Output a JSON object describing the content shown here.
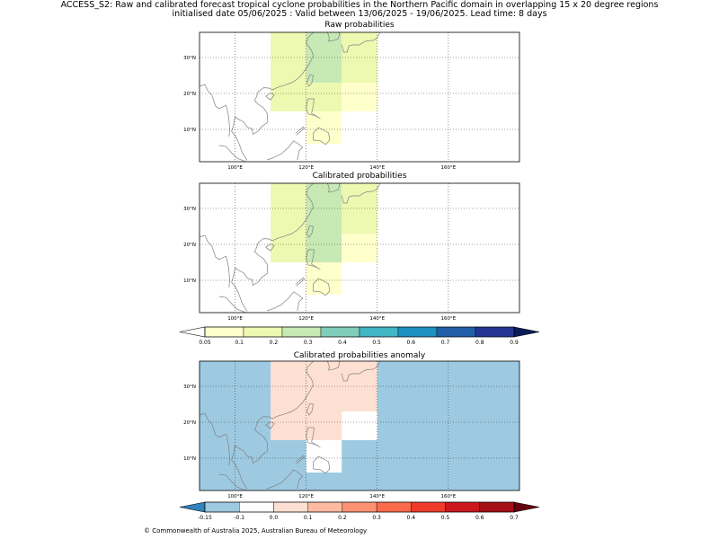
{
  "figure": {
    "title_line1": "ACCESS_S2: Raw and calibrated forecast tropical cyclone probabilities in the Northern Pacific domain in overlapping 15 x 20 degree regions",
    "title_line2": "initialised date 05/06/2025 :  Valid between 13/06/2025 - 19/06/2025. Lead time: 8 days",
    "copyright": "© Commonwealth of Australia 2025, Australian Bureau of Meteorology"
  },
  "colors": {
    "coast": "#808080",
    "anomaly_background": "#3182bd",
    "prob_colormap": [
      "#ffffcc",
      "#edf8b1",
      "#c7e9b4",
      "#7fcdbb",
      "#41b6c4",
      "#1d91c0",
      "#225ea8",
      "#253494",
      "#081d58"
    ],
    "anom_colormap": [
      "#3182bd",
      "#9ecae1",
      "#ffffff",
      "#fee0d2",
      "#fcbba1",
      "#fc9272",
      "#fb6a4a",
      "#ef3b2c",
      "#cb181d",
      "#a50f15",
      "#67000d"
    ]
  },
  "chart_data": [
    {
      "type": "heatmap",
      "title": "Raw probabilities",
      "xlim": [
        90,
        180
      ],
      "ylim": [
        1,
        37
      ],
      "xticks": [
        "100°E",
        "120°E",
        "140°E",
        "160°E"
      ],
      "xtick_values": [
        100,
        120,
        140,
        160
      ],
      "yticks": [
        "10°N",
        "20°N",
        "30°N"
      ],
      "ytick_values": [
        10,
        20,
        30
      ],
      "grid": true,
      "cells": [
        {
          "lon": [
            110,
            120
          ],
          "lat": [
            15,
            37
          ],
          "value": 0.1
        },
        {
          "lon": [
            120,
            130
          ],
          "lat": [
            23,
            37
          ],
          "value": 0.2
        },
        {
          "lon": [
            120,
            130
          ],
          "lat": [
            15,
            23
          ],
          "value": 0.1
        },
        {
          "lon": [
            130,
            140
          ],
          "lat": [
            23,
            37
          ],
          "value": 0.1
        },
        {
          "lon": [
            130,
            140
          ],
          "lat": [
            15,
            23
          ],
          "value": 0.05
        },
        {
          "lon": [
            120,
            130
          ],
          "lat": [
            6,
            15
          ],
          "value": 0.05
        }
      ]
    },
    {
      "type": "heatmap",
      "title": "Calibrated probabilities",
      "xlim": [
        90,
        180
      ],
      "ylim": [
        1,
        37
      ],
      "xticks": [
        "100°E",
        "120°E",
        "140°E",
        "160°E"
      ],
      "xtick_values": [
        100,
        120,
        140,
        160
      ],
      "yticks": [
        "10°N",
        "20°N",
        "30°N"
      ],
      "ytick_values": [
        10,
        20,
        30
      ],
      "grid": true,
      "cells": [
        {
          "lon": [
            110,
            120
          ],
          "lat": [
            15,
            37
          ],
          "value": 0.1
        },
        {
          "lon": [
            120,
            130
          ],
          "lat": [
            15,
            37
          ],
          "value": 0.2
        },
        {
          "lon": [
            130,
            140
          ],
          "lat": [
            23,
            37
          ],
          "value": 0.1
        },
        {
          "lon": [
            130,
            140
          ],
          "lat": [
            15,
            23
          ],
          "value": 0.05
        },
        {
          "lon": [
            120,
            130
          ],
          "lat": [
            6,
            15
          ],
          "value": 0.05
        }
      ],
      "colorbar": {
        "ticks": [
          "0.05",
          "0.1",
          "0.2",
          "0.3",
          "0.4",
          "0.5",
          "0.6",
          "0.7",
          "0.8",
          "0.9"
        ],
        "extend": "both"
      }
    },
    {
      "type": "heatmap",
      "title": "Calibrated probabilities anomaly",
      "xlim": [
        90,
        180
      ],
      "ylim": [
        1,
        37
      ],
      "xticks": [
        "100°E",
        "120°E",
        "140°E",
        "160°E"
      ],
      "xtick_values": [
        100,
        120,
        140,
        160
      ],
      "yticks": [
        "10°N",
        "20°N",
        "30°N"
      ],
      "ytick_values": [
        10,
        20,
        30
      ],
      "grid": true,
      "background_value": -0.15,
      "cells": [
        {
          "lon": [
            110,
            140
          ],
          "lat": [
            15,
            37
          ],
          "value": 0.0
        },
        {
          "lon": [
            120,
            130
          ],
          "lat": [
            15,
            37
          ],
          "value": 0.05
        },
        {
          "lon": [
            130,
            140
          ],
          "lat": [
            15,
            23
          ],
          "value": -0.1
        },
        {
          "lon": [
            120,
            130
          ],
          "lat": [
            6,
            15
          ],
          "value": -0.1
        }
      ],
      "colorbar": {
        "ticks": [
          "-0.15",
          "-0.1",
          "0.0",
          "0.1",
          "0.2",
          "0.3",
          "0.4",
          "0.5",
          "0.6",
          "0.7"
        ],
        "extend": "both"
      }
    }
  ]
}
